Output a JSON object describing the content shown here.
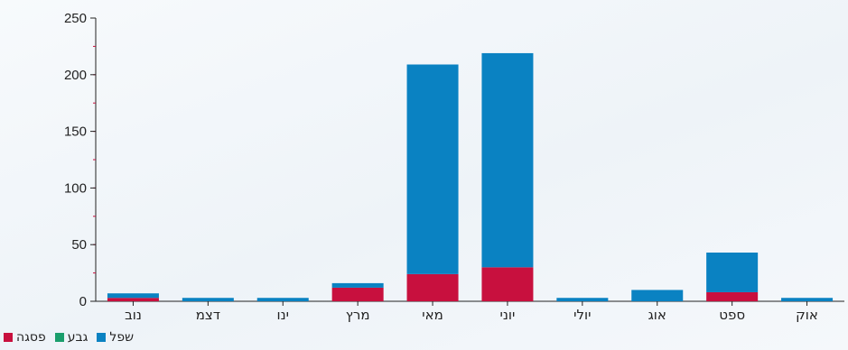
{
  "chart_data": {
    "type": "bar",
    "stacked": true,
    "categories": [
      "נוב",
      "דצמ",
      "ינו",
      "מרץ",
      "מאי",
      "יוני",
      "יולי",
      "אוג",
      "ספט",
      "אוק"
    ],
    "series": [
      {
        "name": "פסגה",
        "color": "#c8103e",
        "values": [
          3,
          0,
          0,
          12,
          24,
          30,
          0,
          0,
          8,
          0
        ]
      },
      {
        "name": "גבע",
        "color": "#1a9e6c",
        "values": [
          0,
          0,
          0,
          0,
          0,
          0,
          0,
          0,
          0,
          0
        ]
      },
      {
        "name": "שפל",
        "color": "#0a82c2",
        "values": [
          4,
          3,
          3,
          4,
          185,
          189,
          3,
          10,
          35,
          3
        ]
      }
    ],
    "ylim": [
      0,
      250
    ],
    "yticks": [
      0,
      50,
      100,
      150,
      200,
      250
    ],
    "grid": false,
    "legend_position": "bottom-left"
  },
  "legend": {
    "items": [
      {
        "label": "פסגה",
        "color": "#c8103e"
      },
      {
        "label": "גבע",
        "color": "#1a9e6c"
      },
      {
        "label": "שפל",
        "color": "#0a82c2"
      }
    ]
  }
}
